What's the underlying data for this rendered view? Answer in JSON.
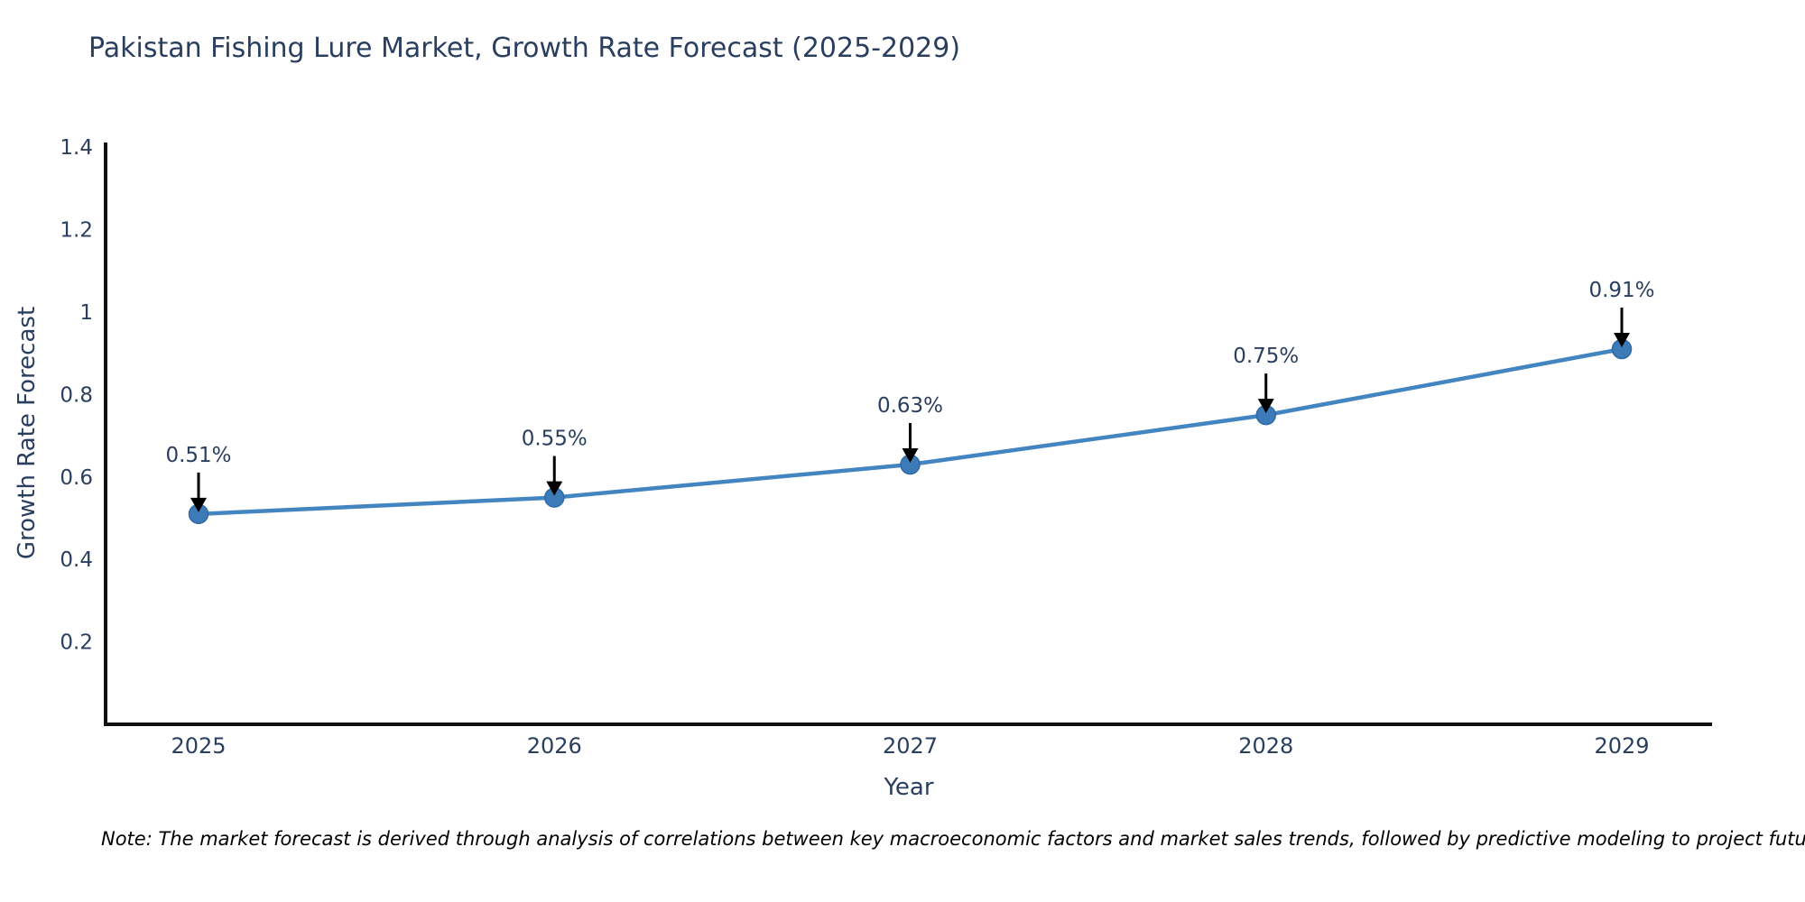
{
  "chart_data": {
    "type": "line",
    "title": "Pakistan Fishing Lure Market, Growth Rate Forecast (2025-2029)",
    "xlabel": "Year",
    "ylabel": "Growth Rate Forecast",
    "categories": [
      "2025",
      "2026",
      "2027",
      "2028",
      "2029"
    ],
    "series": [
      {
        "name": "Growth Rate Forecast",
        "values": [
          0.51,
          0.55,
          0.63,
          0.75,
          0.91
        ],
        "point_labels": [
          "0.51%",
          "0.55%",
          "0.63%",
          "0.75%",
          "0.91%"
        ]
      }
    ],
    "ylim": [
      0,
      1.4
    ],
    "y_ticks": [
      0.2,
      0.4,
      0.6,
      0.8,
      1,
      1.2,
      1.4
    ],
    "y_tick_labels": [
      "0.2",
      "0.4",
      "0.6",
      "0.8",
      "1",
      "1.2",
      "1.4"
    ],
    "grid": false,
    "legend_position": "none",
    "annotation_style": "down-arrow",
    "colors": {
      "line": "#4385c1",
      "marker": "#3d7bb8",
      "marker_outline": "#2f6ba6",
      "arrow": "#000000",
      "axis_line": "#111111",
      "text": "#2a3f5f",
      "note_text": "#000000"
    },
    "note": "Note: The market forecast is derived through analysis of correlations between key macroeconomic factors and market sales trends, followed by predictive modeling to project future sales"
  }
}
